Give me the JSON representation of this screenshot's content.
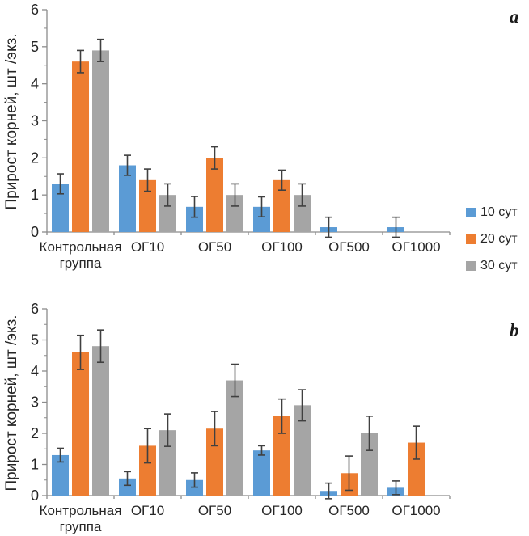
{
  "figure": {
    "background": "#ffffff",
    "axis_color": "#8C8C8C",
    "error_bar_color": "#404040",
    "text_color": "#262626"
  },
  "legend": {
    "items": [
      {
        "label": "10 сут",
        "color": "#5B9BD5"
      },
      {
        "label": "20 сут",
        "color": "#ED7D31"
      },
      {
        "label": "30 сут",
        "color": "#A5A5A5"
      }
    ]
  },
  "chart_data": [
    {
      "type": "bar",
      "panel_label": "a",
      "title": "",
      "ylabel": "Прирост корней, шт /экз.",
      "xlabel": "",
      "ylim": [
        0,
        6
      ],
      "ytick_values": [
        0,
        1,
        2,
        3,
        4,
        5,
        6
      ],
      "minor_tick_step": 0.5,
      "grid": false,
      "legend_position": "right",
      "categories": [
        "Контрольная группа",
        "ОГ10",
        "ОГ50",
        "ОГ100",
        "ОГ500",
        "ОГ1000"
      ],
      "series": [
        {
          "name": "10 сут",
          "color": "#5B9BD5",
          "values": [
            1.3,
            1.8,
            0.68,
            0.68,
            0.13,
            0.13
          ],
          "errors": [
            0.27,
            0.27,
            0.28,
            0.27,
            0.27,
            0.27
          ]
        },
        {
          "name": "20 сут",
          "color": "#ED7D31",
          "values": [
            4.6,
            1.4,
            2.0,
            1.4,
            0,
            0
          ],
          "errors": [
            0.3,
            0.3,
            0.3,
            0.27,
            0,
            0
          ]
        },
        {
          "name": "30 сут",
          "color": "#A5A5A5",
          "values": [
            4.9,
            1.0,
            1.0,
            1.0,
            0,
            0
          ],
          "errors": [
            0.3,
            0.3,
            0.3,
            0.3,
            0,
            0
          ]
        }
      ]
    },
    {
      "type": "bar",
      "panel_label": "b",
      "title": "",
      "ylabel": "Прирост корней, шт /экз.",
      "xlabel": "",
      "ylim": [
        0,
        6
      ],
      "ytick_values": [
        0,
        1,
        2,
        3,
        4,
        5,
        6
      ],
      "minor_tick_step": 0.5,
      "grid": false,
      "legend_position": "none",
      "categories": [
        "Контрольная группа",
        "ОГ10",
        "ОГ50",
        "ОГ100",
        "ОГ500",
        "ОГ1000"
      ],
      "series": [
        {
          "name": "10 сут",
          "color": "#5B9BD5",
          "values": [
            1.3,
            0.55,
            0.5,
            1.45,
            0.15,
            0.25
          ],
          "errors": [
            0.22,
            0.22,
            0.23,
            0.15,
            0.25,
            0.22
          ]
        },
        {
          "name": "20 сут",
          "color": "#ED7D31",
          "values": [
            4.6,
            1.6,
            2.15,
            2.55,
            0.72,
            1.7
          ],
          "errors": [
            0.55,
            0.55,
            0.55,
            0.55,
            0.55,
            0.53
          ]
        },
        {
          "name": "30 сут",
          "color": "#A5A5A5",
          "values": [
            4.8,
            2.1,
            3.7,
            2.9,
            2.0,
            0
          ],
          "errors": [
            0.52,
            0.52,
            0.52,
            0.5,
            0.55,
            0
          ]
        }
      ]
    }
  ]
}
